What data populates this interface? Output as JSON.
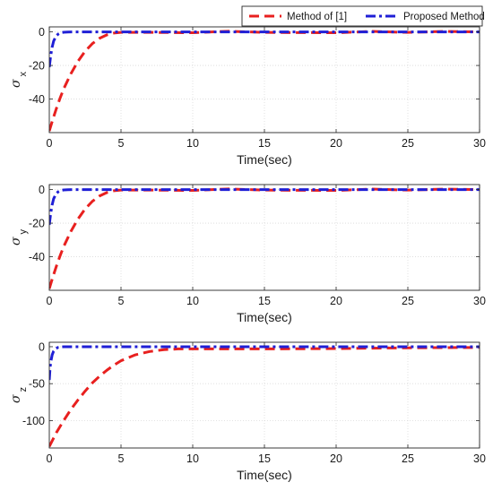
{
  "legend": {
    "entries": [
      {
        "label": "Method of [1]",
        "color": "#e8201f",
        "dash": "dash"
      },
      {
        "label": "Proposed Method",
        "color": "#1f1fd6",
        "dash": "dashdot"
      }
    ],
    "placement": "top-right"
  },
  "chart_data": [
    {
      "type": "line",
      "ylabel_symbol": "σ",
      "ylabel_sub": "x",
      "xlabel": "Time(sec)",
      "xlim": [
        0,
        30
      ],
      "ylim": [
        -60,
        3
      ],
      "xticks": [
        0,
        5,
        10,
        15,
        20,
        25,
        30
      ],
      "yticks": [
        0,
        -20,
        -40
      ],
      "grid": true,
      "series": [
        {
          "name": "Method of [1]",
          "color": "#e8201f",
          "dash": "dash",
          "x": [
            0,
            0.25,
            0.5,
            0.75,
            1,
            1.5,
            2,
            2.5,
            3,
            3.5,
            4,
            4.5,
            5,
            7.5,
            10,
            12.5,
            15,
            20,
            22.5,
            25,
            27.5,
            30
          ],
          "y": [
            -59,
            -52,
            -45.5,
            -39.5,
            -34,
            -25,
            -17.5,
            -11.5,
            -7,
            -3.8,
            -1.8,
            -0.7,
            -0.3,
            -0.3,
            -0.5,
            0.4,
            -0.3,
            -0.5,
            0.3,
            -0.3,
            0.3,
            0
          ]
        },
        {
          "name": "Proposed Method",
          "color": "#1f1fd6",
          "dash": "dashdot",
          "x": [
            0,
            0.1,
            0.2,
            0.3,
            0.45,
            0.6,
            0.8,
            1,
            1.3,
            1.6,
            2,
            30
          ],
          "y": [
            -21,
            -14,
            -9,
            -5.5,
            -2.8,
            -1.4,
            -0.5,
            -0.2,
            -0.05,
            0,
            0,
            0
          ]
        }
      ]
    },
    {
      "type": "line",
      "ylabel_symbol": "σ",
      "ylabel_sub": "y",
      "xlabel": "Time(sec)",
      "xlim": [
        0,
        30
      ],
      "ylim": [
        -60,
        3
      ],
      "xticks": [
        0,
        5,
        10,
        15,
        20,
        25,
        30
      ],
      "yticks": [
        0,
        -20,
        -40
      ],
      "grid": true,
      "series": [
        {
          "name": "Method of [1]",
          "color": "#e8201f",
          "dash": "dash",
          "x": [
            0,
            0.25,
            0.5,
            0.75,
            1,
            1.5,
            2,
            2.5,
            3,
            3.5,
            4,
            4.5,
            5,
            7.5,
            10,
            12.5,
            15,
            20,
            22.5,
            25,
            27.5,
            30
          ],
          "y": [
            -59,
            -52,
            -45.5,
            -39.5,
            -34,
            -25,
            -17.5,
            -11.5,
            -7,
            -3.8,
            -1.8,
            -0.7,
            -0.3,
            -0.3,
            -0.5,
            0.4,
            -0.3,
            -0.5,
            0.3,
            -0.3,
            0.3,
            0
          ]
        },
        {
          "name": "Proposed Method",
          "color": "#1f1fd6",
          "dash": "dashdot",
          "x": [
            0,
            0.1,
            0.2,
            0.3,
            0.45,
            0.6,
            0.8,
            1,
            1.3,
            1.6,
            2,
            30
          ],
          "y": [
            -21,
            -14,
            -9,
            -5.5,
            -2.8,
            -1.4,
            -0.5,
            -0.2,
            -0.05,
            0,
            0,
            0
          ]
        }
      ]
    },
    {
      "type": "line",
      "ylabel_symbol": "σ",
      "ylabel_sub": "z",
      "xlabel": "Time(sec)",
      "xlim": [
        0,
        30
      ],
      "ylim": [
        -137,
        6
      ],
      "xticks": [
        0,
        5,
        10,
        15,
        20,
        25,
        30
      ],
      "yticks": [
        0,
        -50,
        -100
      ],
      "grid": true,
      "series": [
        {
          "name": "Method of [1]",
          "color": "#e8201f",
          "dash": "dash",
          "x": [
            0,
            0.5,
            1,
            1.5,
            2,
            2.5,
            3,
            3.5,
            4,
            4.5,
            5,
            6,
            7,
            8,
            9,
            10,
            12,
            15,
            20,
            25,
            30
          ],
          "y": [
            -135,
            -116,
            -100,
            -85,
            -72,
            -60,
            -49,
            -40,
            -32,
            -25,
            -19,
            -11,
            -6.5,
            -4,
            -3,
            -3,
            -3,
            -3,
            -2.5,
            -1.5,
            -1
          ]
        },
        {
          "name": "Proposed Method",
          "color": "#1f1fd6",
          "dash": "dashdot",
          "x": [
            0,
            0.05,
            0.1,
            0.2,
            0.3,
            0.45,
            0.6,
            0.8,
            1,
            1.5,
            30
          ],
          "y": [
            -45,
            -30,
            -21,
            -11,
            -6,
            -2.5,
            -1,
            -0.3,
            0,
            0,
            0
          ]
        }
      ]
    }
  ]
}
